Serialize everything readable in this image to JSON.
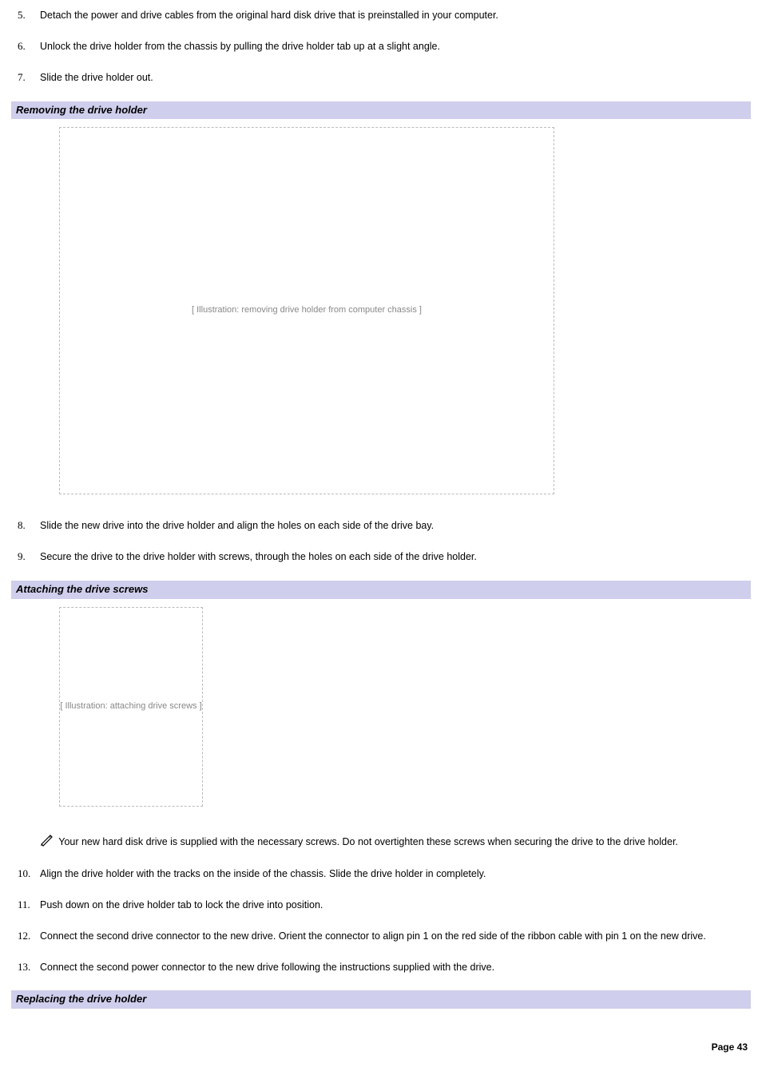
{
  "steps_a": [
    {
      "n": "5.",
      "t": "Detach the power and drive cables from the original hard disk drive that is preinstalled in your computer."
    },
    {
      "n": "6.",
      "t": "Unlock the drive holder from the chassis by pulling the drive holder tab up at a slight angle."
    },
    {
      "n": "7.",
      "t": "Slide the drive holder out."
    }
  ],
  "section1": {
    "title": "Removing the drive holder",
    "fig_label": "[ Illustration: removing drive holder from computer chassis ]",
    "fig_w": 620,
    "fig_h": 460
  },
  "steps_b": [
    {
      "n": "8.",
      "t": "Slide the new drive into the drive holder and align the holes on each side of the drive bay."
    },
    {
      "n": "9.",
      "t": "Secure the drive to the drive holder with screws, through the holes on each side of the drive holder."
    }
  ],
  "section2": {
    "title": "Attaching the drive screws",
    "fig_label": "[ Illustration: attaching drive screws ]",
    "fig_w": 180,
    "fig_h": 250
  },
  "note": "Your new hard disk drive is supplied with the necessary screws. Do not overtighten these screws when securing the drive to the drive holder.",
  "steps_c": [
    {
      "n": "10.",
      "t": "Align the drive holder with the tracks on the inside of the chassis. Slide the drive holder in completely."
    },
    {
      "n": "11.",
      "t": "Push down on the drive holder tab to lock the drive into position."
    },
    {
      "n": "12.",
      "t": "Connect the second drive connector to the new drive. Orient the connector to align pin 1 on the red side of the ribbon cable with pin 1 on the new drive."
    },
    {
      "n": "13.",
      "t": "Connect the second power connector to the new drive following the instructions supplied with the drive."
    }
  ],
  "section3": {
    "title": "Replacing the drive holder"
  },
  "footer": "Page 43",
  "colors": {
    "section_bg": "#cfceec"
  }
}
